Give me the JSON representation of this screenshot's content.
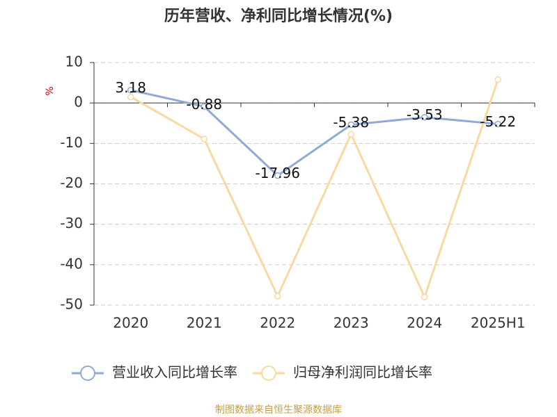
{
  "chart_data": {
    "type": "line",
    "title": "历年营收、净利同比增长情况(%)",
    "y_label": "%",
    "categories": [
      "2020",
      "2021",
      "2022",
      "2023",
      "2024",
      "2025H1"
    ],
    "series": [
      {
        "name": "营业收入同比增长率",
        "color": "#8eaad6",
        "values": [
          3.18,
          -0.88,
          -17.96,
          -5.38,
          -3.53,
          -5.22
        ],
        "show_labels": true
      },
      {
        "name": "归母净利润同比增长率",
        "color": "#fad9a0",
        "values": [
          1.5,
          -8.9,
          -47.8,
          -7.7,
          -48,
          5.8
        ],
        "show_labels": false
      }
    ],
    "ylim": [
      -50,
      10
    ],
    "yticks": [
      -50,
      -40,
      -30,
      -20,
      -10,
      0,
      10
    ],
    "grid": true,
    "source": "制图数据来自恒生聚源数据库"
  }
}
